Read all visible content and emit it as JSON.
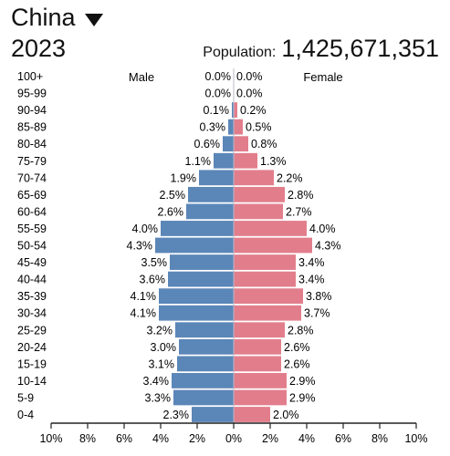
{
  "header": {
    "country": "China",
    "year": "2023",
    "population_label": "Population:",
    "population_value": "1,425,671,351"
  },
  "colors": {
    "male": "#5b86b8",
    "female": "#e27e8c",
    "axis": "#222222"
  },
  "chart_data": {
    "type": "bar",
    "orientation": "horizontal-diverging",
    "legend": [
      "Male",
      "Female"
    ],
    "categories": [
      "100+",
      "95-99",
      "90-94",
      "85-89",
      "80-84",
      "75-79",
      "70-74",
      "65-69",
      "60-64",
      "55-59",
      "50-54",
      "45-49",
      "40-44",
      "35-39",
      "30-34",
      "25-29",
      "20-24",
      "15-19",
      "10-14",
      "5-9",
      "0-4"
    ],
    "series": [
      {
        "name": "Male",
        "values": [
          0.0,
          0.0,
          0.1,
          0.3,
          0.6,
          1.1,
          1.9,
          2.5,
          2.6,
          4.0,
          4.3,
          3.5,
          3.6,
          4.1,
          4.1,
          3.2,
          3.0,
          3.1,
          3.4,
          3.3,
          2.3
        ]
      },
      {
        "name": "Female",
        "values": [
          0.0,
          0.0,
          0.2,
          0.5,
          0.8,
          1.3,
          2.2,
          2.8,
          2.7,
          4.0,
          4.3,
          3.4,
          3.4,
          3.8,
          3.7,
          2.8,
          2.6,
          2.6,
          2.9,
          2.9,
          2.0
        ]
      }
    ],
    "x_ticks": [
      "10%",
      "8%",
      "6%",
      "4%",
      "2%",
      "0%",
      "2%",
      "4%",
      "6%",
      "8%",
      "10%"
    ],
    "xlim": [
      -10,
      10
    ]
  }
}
